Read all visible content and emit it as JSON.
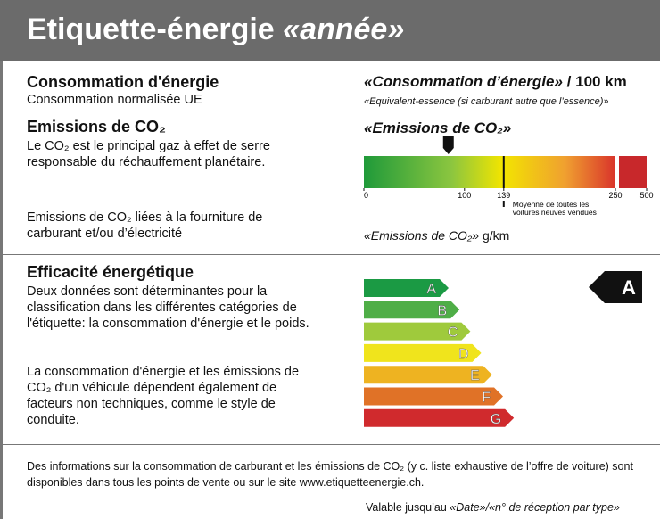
{
  "header": {
    "title": "Etiquette-énergie",
    "title_italic": "«année»"
  },
  "consumption": {
    "heading": "Consommation d'énergie",
    "sub": "Consommation normalisée UE",
    "value_placeholder": "«Consommation d’énergie»",
    "unit": "/ 100 km",
    "note": "«Equivalent-essence (si carburant autre que l’essence)»"
  },
  "emissions": {
    "heading": "Emissions de CO₂",
    "text": "Le CO₂ est le principal gaz à effet de serre responsable du réchauffement planétaire.",
    "scale_title": "«Emissions de CO₂»",
    "scale": {
      "ticks": [
        0,
        100,
        139,
        250,
        500
      ],
      "average": 139,
      "pointer": 84,
      "average_label": "Moyenne de toutes les voitures neuves vendues"
    },
    "supply_text": "Emissions de CO₂ liées à la fourniture de carburant et/ou d’électricité",
    "supply_value": "«Emissions de CO₂»",
    "supply_unit": "g/km"
  },
  "efficiency": {
    "heading": "Efficacité énergétique",
    "p1": "Deux données sont déterminantes pour la classification dans les différentes catégories de l'étiquette: la consommation d'énergie et le poids.",
    "p2": "La consommation d'énergie et les émissions de CO₂ d'un véhicule dépendent également de facteurs non techniques, comme le style de conduite.",
    "classes": [
      "A",
      "B",
      "C",
      "D",
      "E",
      "F",
      "G"
    ],
    "current": "A"
  },
  "footer": {
    "info": "Des informations sur la consommation de carburant et les émissions de CO₂ (y c. liste exhaustive de l’offre de voiture) sont disponibles dans tous les points de vente ou sur le site www.etiquetteenergie.ch.",
    "valid": "Valable jusqu’au",
    "valid_italic": "«Date»/«n° de réception par type»"
  }
}
